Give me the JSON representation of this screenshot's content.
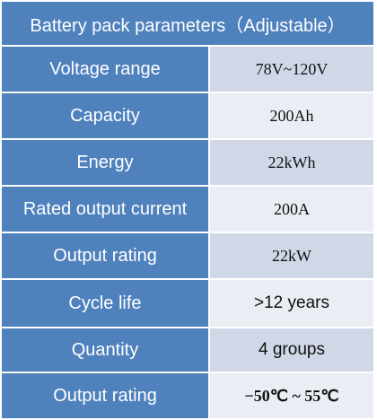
{
  "table": {
    "title": "Battery pack parameters（Adjustable）",
    "rows": [
      {
        "label": "Voltage range",
        "value": "78V~120V"
      },
      {
        "label": "Capacity",
        "value": "200Ah"
      },
      {
        "label": "Energy",
        "value": "22kWh"
      },
      {
        "label": "Rated output current",
        "value": "200A"
      },
      {
        "label": "Output rating",
        "value": "22kW"
      },
      {
        "label": "Cycle life",
        "value": ">12 years"
      },
      {
        "label": "Quantity",
        "value": "4 groups"
      },
      {
        "label": "Output rating",
        "value": "−50℃ ~ 55℃"
      }
    ]
  },
  "colors": {
    "header_bg": "#4f81bd",
    "value_bg_a": "#d0d8e8",
    "value_bg_b": "#e9edf4"
  }
}
